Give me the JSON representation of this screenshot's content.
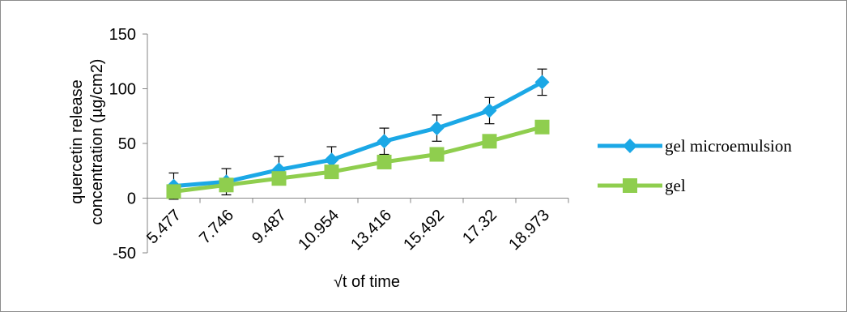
{
  "chart_data": {
    "type": "line",
    "categories": [
      "5.477",
      "7.746",
      "9.487",
      "10.954",
      "13.416",
      "15.492",
      "17.32",
      "18.973"
    ],
    "series": [
      {
        "name": "gel microemulsion",
        "values": [
          11,
          15,
          26,
          35,
          52,
          64,
          80,
          106
        ],
        "errors": [
          12,
          12,
          12,
          12,
          12,
          12,
          12,
          12
        ],
        "color": "#1BA8E6",
        "marker": "diamond"
      },
      {
        "name": "gel",
        "values": [
          6,
          12,
          18,
          24,
          33,
          40,
          52,
          65
        ],
        "errors": [
          0,
          0,
          0,
          0,
          0,
          0,
          0,
          0
        ],
        "color": "#8FCE4E",
        "marker": "square"
      }
    ],
    "xlabel": "√t of time",
    "ylabel_lines": [
      "quercetin release",
      "concentration (µg/cm2)"
    ],
    "ylim": [
      -50,
      150
    ],
    "yticks": [
      -50,
      0,
      50,
      100,
      150
    ],
    "grid": false,
    "legend_position": "right"
  },
  "colors": {
    "axis": "#868686",
    "error_bar": "#000000"
  }
}
